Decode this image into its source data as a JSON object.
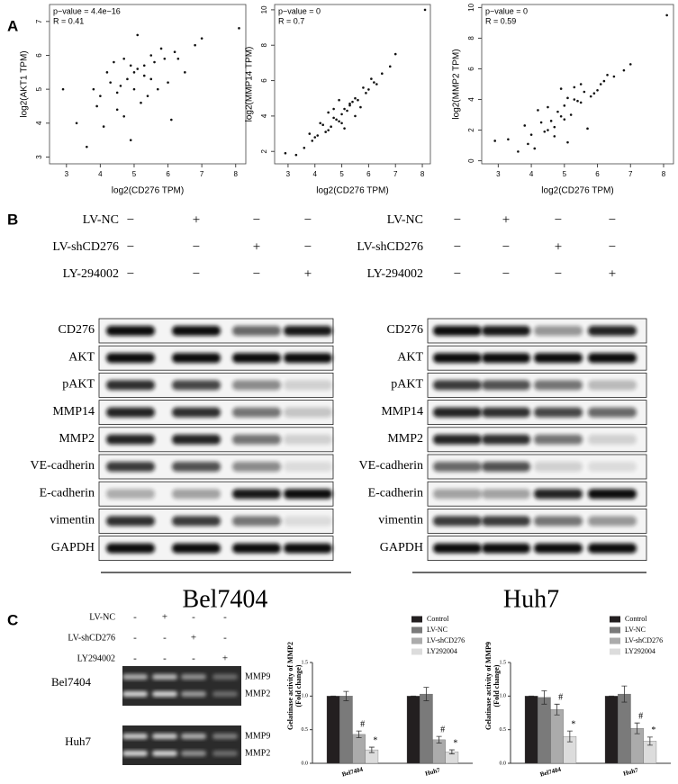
{
  "panel_labels": [
    "A",
    "B",
    "C"
  ],
  "chart_data": [
    {
      "type": "scatter",
      "annotations": [
        "p−value = 4.4e−16",
        "R = 0.41"
      ],
      "xlabel": "log2(CD276 TPM)",
      "ylabel": "log2(AKT1 TPM)",
      "xlim": [
        2.5,
        8.3
      ],
      "xticks": [
        3,
        4,
        5,
        6,
        7,
        8
      ],
      "ylim": [
        2.8,
        7.5
      ],
      "yticks": [
        3,
        4,
        5,
        6,
        7
      ],
      "x": [
        4.8,
        5.1,
        4.5,
        5.6,
        6.2,
        3.9,
        4.3,
        5.0,
        5.3,
        4.7,
        6.8,
        5.9,
        4.1,
        5.5,
        4.9,
        3.6,
        6.5,
        5.2,
        4.4,
        5.8,
        4.6,
        5.4,
        7.0,
        3.3,
        6.0,
        4.2,
        5.7,
        4.9,
        5.1,
        3.8,
        6.3,
        4.5,
        5.0,
        8.1,
        4.0,
        5.5,
        6.1,
        4.7,
        2.9,
        5.3
      ],
      "y": [
        5.3,
        5.6,
        4.9,
        5.8,
        6.1,
        4.5,
        5.2,
        5.0,
        5.4,
        4.2,
        6.3,
        5.9,
        3.9,
        6.0,
        5.7,
        3.3,
        5.5,
        4.6,
        5.8,
        6.2,
        5.1,
        4.8,
        6.5,
        4.0,
        5.2,
        5.5,
        5.0,
        3.5,
        6.6,
        5.0,
        5.9,
        4.4,
        5.5,
        6.8,
        4.8,
        5.3,
        4.1,
        5.9,
        5.0,
        5.7
      ]
    },
    {
      "type": "scatter",
      "annotations": [
        "p−value = 0",
        "R = 0.7"
      ],
      "xlabel": "log2(CD276 TPM)",
      "ylabel": "log2(MMP14 TPM)",
      "xlim": [
        2.5,
        8.3
      ],
      "xticks": [
        3,
        4,
        5,
        6,
        7,
        8
      ],
      "ylim": [
        1.3,
        10.3
      ],
      "yticks": [
        2,
        4,
        6,
        8,
        10
      ],
      "x": [
        4.8,
        5.1,
        4.5,
        5.6,
        6.2,
        3.9,
        4.3,
        5.0,
        5.3,
        4.7,
        6.8,
        5.9,
        4.1,
        5.5,
        4.9,
        3.6,
        6.5,
        5.2,
        4.4,
        5.8,
        4.6,
        5.4,
        7.0,
        3.3,
        6.0,
        4.2,
        5.7,
        4.9,
        5.1,
        3.8,
        6.3,
        4.5,
        5.0,
        8.1,
        4.0,
        5.5,
        6.1,
        4.7,
        2.9,
        5.3
      ],
      "y": [
        3.8,
        4.4,
        3.2,
        4.9,
        5.9,
        2.6,
        3.5,
        4.1,
        4.6,
        3.9,
        6.8,
        5.3,
        2.9,
        5.0,
        3.7,
        2.2,
        6.4,
        4.3,
        3.1,
        5.6,
        3.4,
        4.8,
        7.5,
        1.8,
        5.5,
        3.6,
        4.5,
        4.9,
        3.3,
        3.0,
        5.8,
        4.2,
        3.6,
        10.0,
        2.8,
        4.0,
        6.1,
        4.4,
        1.9,
        4.7
      ]
    },
    {
      "type": "scatter",
      "annotations": [
        "p−value = 0",
        "R = 0.59"
      ],
      "xlabel": "log2(CD276 TPM)",
      "ylabel": "log2(MMP2 TPM)",
      "xlim": [
        2.5,
        8.3
      ],
      "xticks": [
        3,
        4,
        5,
        6,
        7,
        8
      ],
      "ylim": [
        -0.2,
        10.2
      ],
      "yticks": [
        0,
        2,
        4,
        6,
        8,
        10
      ],
      "x": [
        4.8,
        5.1,
        4.5,
        5.6,
        6.2,
        3.9,
        4.3,
        5.0,
        5.3,
        4.7,
        6.8,
        5.9,
        4.1,
        5.5,
        4.9,
        3.6,
        6.5,
        5.2,
        4.4,
        5.8,
        4.6,
        5.4,
        7.0,
        3.3,
        6.0,
        4.2,
        5.7,
        4.9,
        5.1,
        3.8,
        6.3,
        4.5,
        5.0,
        8.1,
        4.0,
        5.5,
        6.1,
        4.7,
        2.9,
        5.3
      ],
      "y": [
        3.2,
        4.1,
        2.0,
        4.5,
        5.2,
        1.1,
        2.5,
        3.6,
        4.8,
        1.6,
        5.9,
        4.4,
        0.8,
        5.0,
        2.9,
        0.6,
        5.5,
        3.0,
        1.9,
        4.2,
        2.6,
        3.9,
        6.3,
        1.4,
        4.6,
        3.3,
        2.1,
        4.7,
        1.2,
        2.3,
        5.6,
        3.5,
        2.7,
        9.5,
        1.7,
        3.8,
        5.0,
        2.2,
        1.3,
        4.0
      ]
    },
    {
      "type": "bar",
      "ylabel": [
        "Gelatinase activity of MMP2",
        "(Fold change)"
      ],
      "categories": [
        "Bel7404",
        "Huh7"
      ],
      "ylim": [
        0,
        1.5
      ],
      "yticks": [
        {
          "value": 0,
          "label": "0.0"
        },
        {
          "value": 0.5,
          "label": "0.5"
        },
        {
          "value": 1,
          "label": "1.0"
        },
        {
          "value": 1.5,
          "label": "1.5"
        }
      ],
      "series": [
        {
          "name": "Control",
          "color": "#231f20",
          "values": [
            1,
            1
          ],
          "errors": [
            0,
            0
          ]
        },
        {
          "name": "LV-NC",
          "color": "#7a7a7a",
          "values": [
            1.0,
            1.03
          ],
          "errors": [
            0.07,
            0.1
          ]
        },
        {
          "name": "LV-shCD276",
          "color": "#ababab",
          "values": [
            0.43,
            0.35
          ],
          "errors": [
            0.05,
            0.05
          ],
          "marker": "#"
        },
        {
          "name": "LY292004",
          "color": "#dcdcdc",
          "values": [
            0.2,
            0.17
          ],
          "errors": [
            0.04,
            0.03
          ],
          "marker": "*"
        }
      ]
    },
    {
      "type": "bar",
      "ylabel": [
        "Gelatinase activity of MMP9",
        "(Fold change)"
      ],
      "categories": [
        "Bel7404",
        "Huh7"
      ],
      "ylim": [
        0,
        1.5
      ],
      "yticks": [
        {
          "value": 0,
          "label": "0.0"
        },
        {
          "value": 0.5,
          "label": "0.5"
        },
        {
          "value": 1,
          "label": "1.0"
        },
        {
          "value": 1.5,
          "label": "1.5"
        }
      ],
      "series": [
        {
          "name": "Control",
          "color": "#231f20",
          "values": [
            1,
            1
          ],
          "errors": [
            0,
            0
          ]
        },
        {
          "name": "LV-NC",
          "color": "#7a7a7a",
          "values": [
            0.98,
            1.03
          ],
          "errors": [
            0.1,
            0.12
          ]
        },
        {
          "name": "LV-shCD276",
          "color": "#ababab",
          "values": [
            0.8,
            0.52
          ],
          "errors": [
            0.08,
            0.08
          ],
          "marker": "#"
        },
        {
          "name": "LY292004",
          "color": "#dcdcdc",
          "values": [
            0.4,
            0.33
          ],
          "errors": [
            0.08,
            0.06
          ],
          "marker": "*"
        }
      ]
    }
  ],
  "blot": {
    "groups": [
      {
        "name": "Bel7404",
        "conditions": [
          {
            "label": "LV-NC",
            "signs": [
              "−",
              "+",
              "−",
              "−"
            ]
          },
          {
            "label": "LV-shCD276",
            "signs": [
              "−",
              "−",
              "+",
              "−"
            ]
          },
          {
            "label": "LY-294002",
            "signs": [
              "−",
              "−",
              "−",
              "+"
            ]
          }
        ],
        "proteins": [
          "CD276",
          "AKT",
          "pAKT",
          "MMP14",
          "MMP2",
          "VE-cadherin",
          "E-cadherin",
          "vimentin",
          "GAPDH"
        ]
      },
      {
        "name": "Huh7",
        "conditions": [
          {
            "label": "LV-NC",
            "signs": [
              "−",
              "+",
              "−",
              "−"
            ]
          },
          {
            "label": "LV-shCD276",
            "signs": [
              "−",
              "−",
              "+",
              "−"
            ]
          },
          {
            "label": "LY-294002",
            "signs": [
              "−",
              "−",
              "−",
              "+"
            ]
          }
        ],
        "proteins": [
          "CD276",
          "AKT",
          "pAKT",
          "MMP14",
          "MMP2",
          "VE-cadherin",
          "E-cadherin",
          "vimentin",
          "GAPDH"
        ]
      }
    ]
  },
  "gel": {
    "conditions": [
      {
        "label": "LV-NC",
        "signs": [
          "-",
          "+",
          "-",
          "-"
        ]
      },
      {
        "label": "LV-shCD276",
        "signs": [
          "-",
          "-",
          "+",
          "-"
        ]
      },
      {
        "label": "LY294002",
        "signs": [
          "-",
          "-",
          "-",
          "+"
        ]
      }
    ],
    "cell_lines": [
      "Bel7404",
      "Huh7"
    ],
    "bands": [
      "MMP9",
      "MMP2"
    ]
  }
}
